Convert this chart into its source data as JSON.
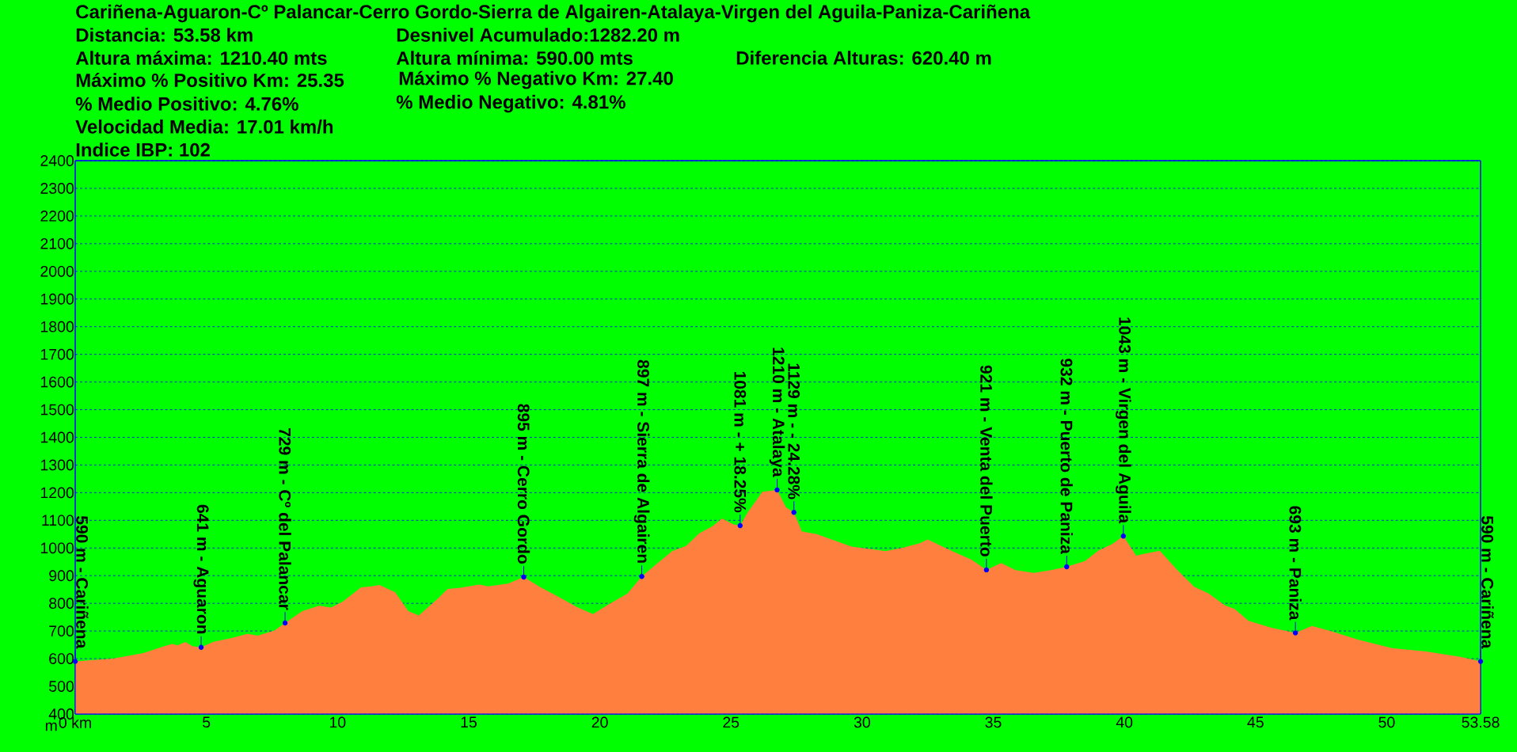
{
  "chart_data": {
    "type": "area",
    "title": "Cariñena-Aguaron-Cº Palancar-Cerro Gordo-Sierra de Algairen-Atalaya-Virgen del Aguila-Paniza-Cariñena",
    "ylabel": "m",
    "color": "#ff7f3f",
    "x": [
      0,
      1.44,
      2.6,
      3.4,
      3.7,
      3.9,
      4.2,
      4.46,
      4.8,
      5.25,
      6.0,
      6.56,
      6.96,
      7.6,
      8.0,
      8.66,
      9.3,
      9.75,
      10.2,
      10.9,
      11.3,
      11.6,
      12.2,
      12.7,
      13.1,
      13.8,
      14.2,
      14.7,
      15.4,
      15.75,
      16.5,
      17.1,
      17.77,
      18.4,
      19.1,
      19.74,
      20.4,
      21.05,
      21.6,
      22.1,
      22.76,
      23.3,
      23.8,
      24.3,
      24.66,
      25.1,
      25.35,
      25.64,
      26.2,
      26.76,
      27.1,
      27.4,
      27.7,
      28.27,
      28.9,
      29.6,
      30.9,
      31.55,
      32.2,
      32.5,
      33.5,
      34.17,
      34.74,
      35.3,
      35.85,
      36.55,
      37.2,
      37.8,
      38.5,
      39.0,
      39.55,
      39.96,
      40.45,
      40.7,
      41.35,
      42.0,
      42.66,
      43.2,
      43.83,
      44.2,
      44.73,
      45.6,
      46.52,
      47.15,
      47.87,
      48.9,
      50.2,
      51.5,
      52.8,
      53.58
    ],
    "values": [
      590,
      600,
      620,
      645,
      653,
      648,
      660,
      645,
      641,
      660,
      675,
      690,
      683,
      702,
      729,
      772,
      791,
      785,
      806,
      858,
      861,
      866,
      840,
      772,
      756,
      815,
      852,
      856,
      868,
      861,
      871,
      895,
      856,
      825,
      788,
      761,
      800,
      835,
      897,
      937,
      989,
      1008,
      1054,
      1079,
      1107,
      1085,
      1081,
      1129,
      1203,
      1210,
      1147,
      1129,
      1060,
      1050,
      1029,
      1005,
      989,
      1001,
      1017,
      1031,
      986,
      958,
      921,
      946,
      920,
      910,
      920,
      932,
      953,
      990,
      1015,
      1043,
      972,
      978,
      990,
      922,
      860,
      836,
      793,
      780,
      737,
      712,
      693,
      718,
      700,
      669,
      638,
      626,
      607,
      590
    ],
    "xlim": [
      0,
      53.58
    ],
    "ylim": [
      400,
      2400
    ],
    "xticks": [
      {
        "value": 0,
        "label": "0 km"
      },
      5,
      10,
      15,
      20,
      25,
      30,
      35,
      40,
      45,
      50,
      53.58
    ],
    "yticks": [
      400,
      500,
      600,
      700,
      800,
      900,
      1000,
      1100,
      1200,
      1300,
      1400,
      1500,
      1600,
      1700,
      1800,
      1900,
      2000,
      2100,
      2200,
      2300,
      2400
    ],
    "grid": "y",
    "annotations": [
      "Distancia: 53.58 km",
      "Desnivel Acumulado:1282.20 m",
      "Altura máxima: 1210.40 mts",
      "Altura mínima: 590.00 mts",
      "Diferencia Alturas:  620.40 m",
      "Máximo % Positivo Km: 25.35",
      "Máximo % Negativo Km: 27.40",
      "% Medio Positivo: 4.76%",
      "% Medio Negativo: 4.81%",
      "Velocidad Media: 17.01 km/h",
      "Indice IBP: 102",
      {
        "text": "590 m - Cariñena",
        "x": 0,
        "y": 590
      },
      {
        "text": "641 m - Aguaron",
        "x": 4.8,
        "y": 641
      },
      {
        "text": "729 m - Cº del Palancar",
        "x": 8.0,
        "y": 729
      },
      {
        "text": "895 m - Cerro Gordo",
        "x": 17.1,
        "y": 895
      },
      {
        "text": "897 m - Sierra de Algairen",
        "x": 21.6,
        "y": 897
      },
      {
        "text": "1081 m - + 18.25%",
        "x": 25.35,
        "y": 1081
      },
      {
        "text": "1210 m - Atalaya",
        "x": 26.76,
        "y": 1210
      },
      {
        "text": "1129 m - - 24.28%",
        "x": 27.4,
        "y": 1129
      },
      {
        "text": "921 m - Venta del Puerto",
        "x": 34.74,
        "y": 921
      },
      {
        "text": "932 m - Puerto de Paniza",
        "x": 37.8,
        "y": 932
      },
      {
        "text": "1043 m - Virgen del Aguila",
        "x": 39.96,
        "y": 1043
      },
      {
        "text": "693 m - Paniza",
        "x": 46.52,
        "y": 693
      },
      {
        "text": "590 m - Cariñena",
        "x": 53.58,
        "y": 590
      }
    ]
  }
}
